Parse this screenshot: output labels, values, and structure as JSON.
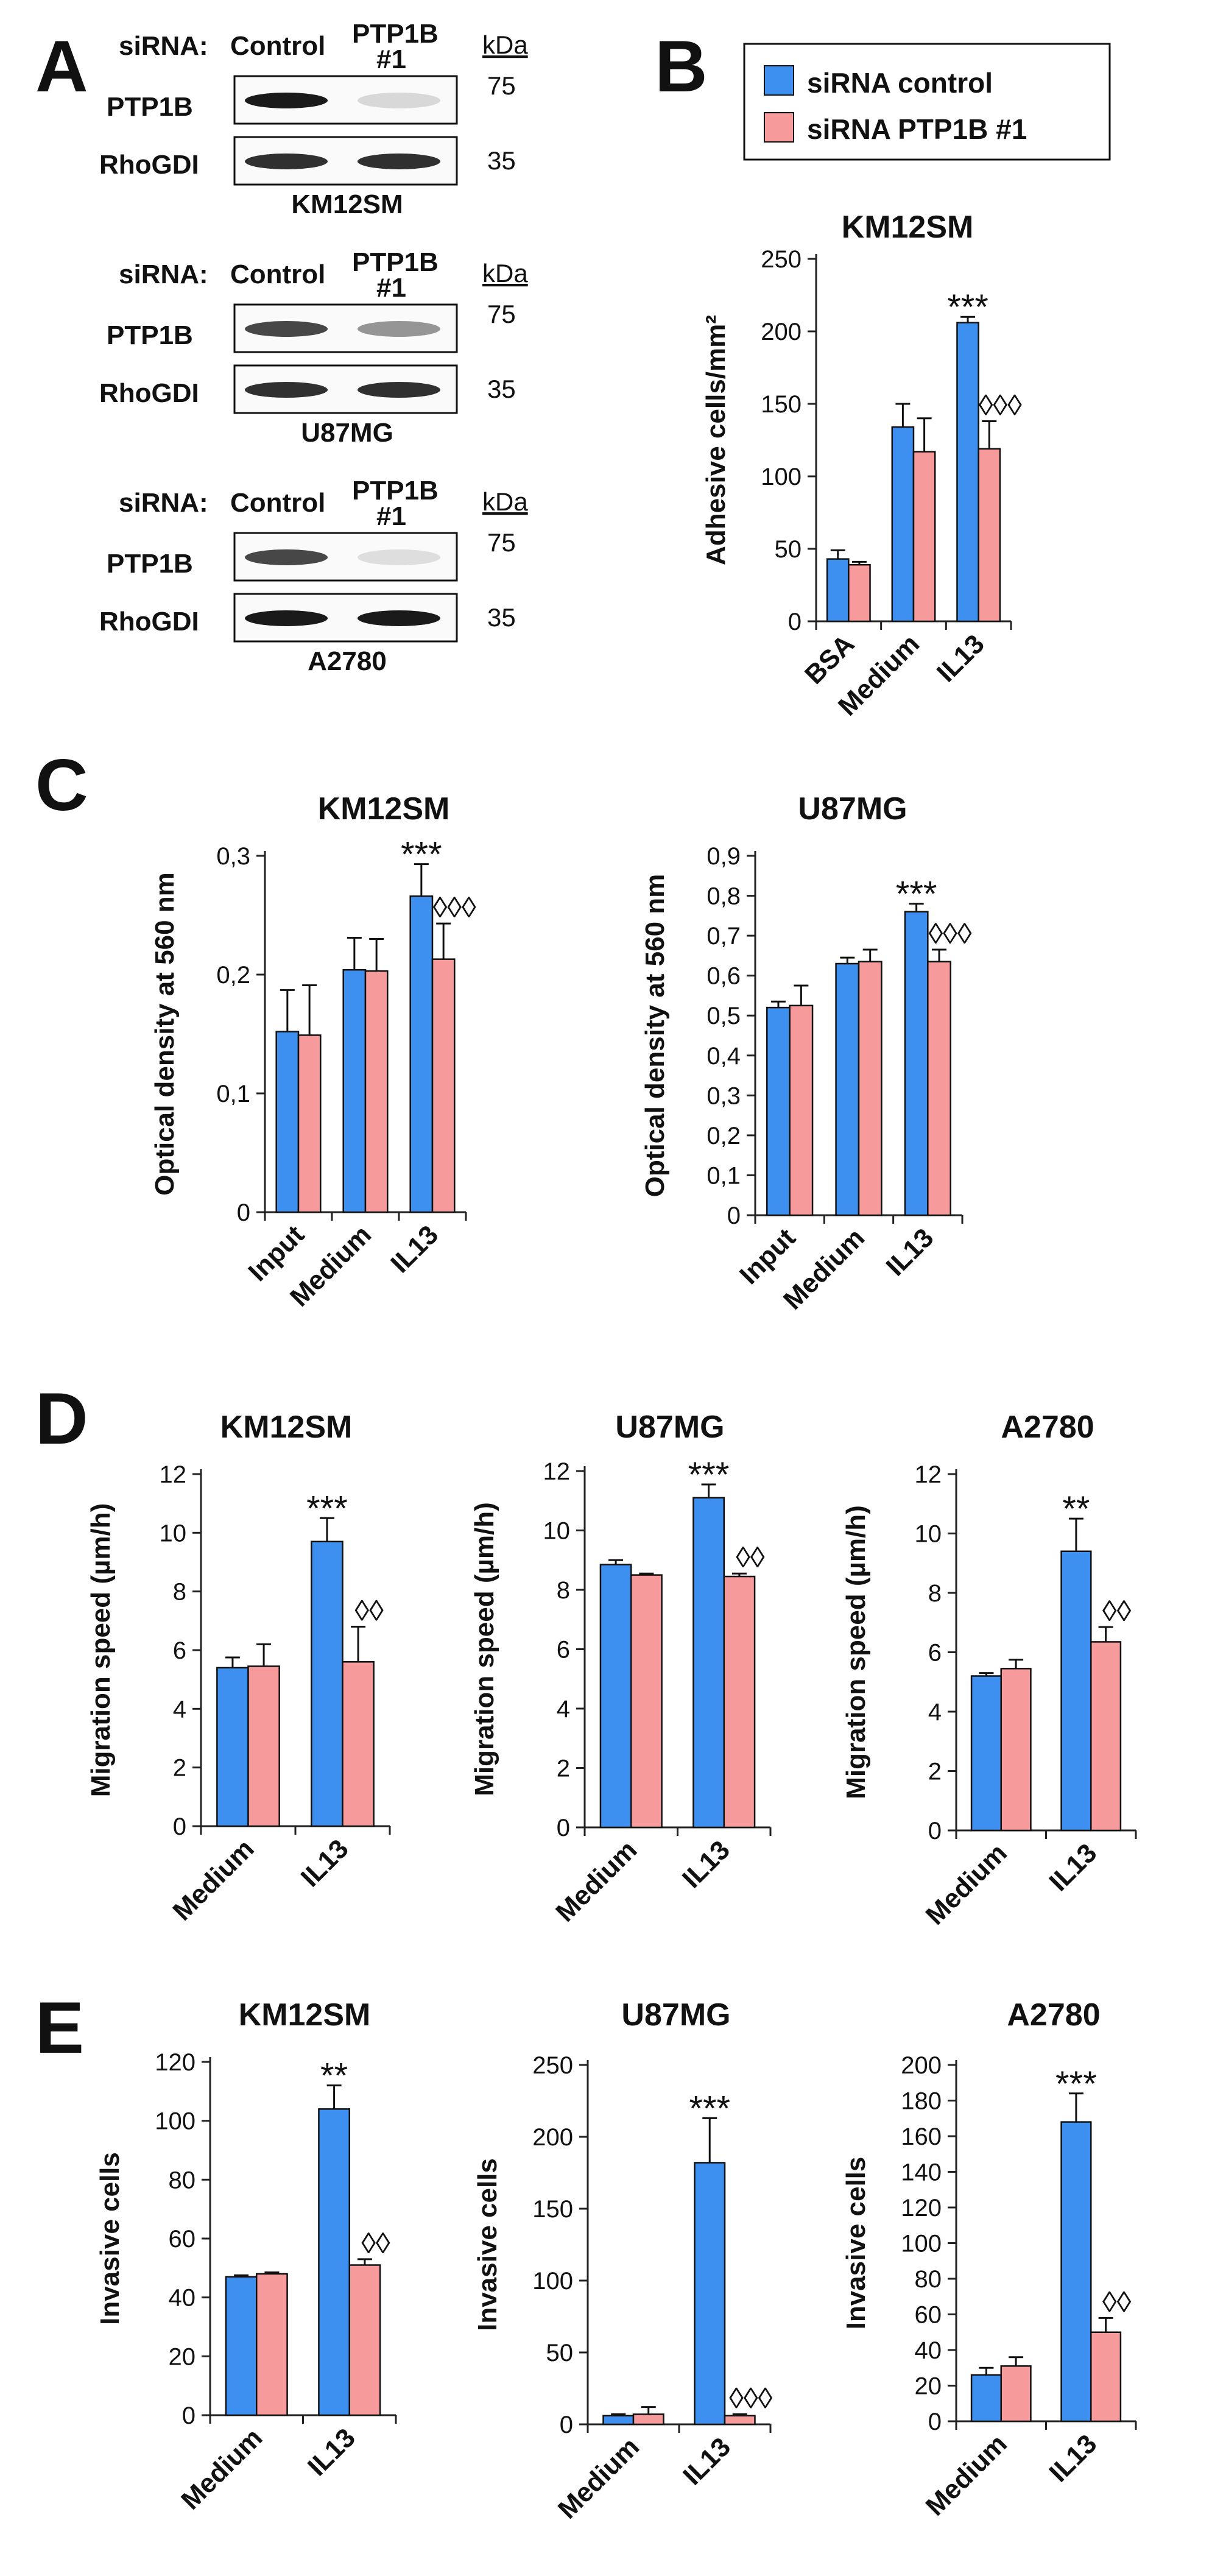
{
  "colors": {
    "control": "#3d8ff0",
    "ptp": "#f79a9c",
    "axis": "#222222",
    "band": "#1a1a1a",
    "box": "#ffffff"
  },
  "legend": {
    "control_label": "siRNA control",
    "ptp_label": "siRNA PTP1B #1"
  },
  "panel_labels": {
    "a": "A",
    "b": "B",
    "c": "C",
    "d": "D",
    "e": "E"
  },
  "blots": [
    {
      "cell": "KM12SM",
      "siRNA": "siRNA:",
      "control": "Control",
      "ptp_line1": "PTP1B",
      "ptp_line2": "#1",
      "kda": "kDa",
      "row1": "PTP1B",
      "row2": "RhoGDI",
      "mw1": "75",
      "mw2": "35",
      "band_intensity": [
        [
          1.0,
          0.15
        ],
        [
          0.9,
          0.9
        ]
      ]
    },
    {
      "cell": "U87MG",
      "siRNA": "siRNA:",
      "control": "Control",
      "ptp_line1": "PTP1B",
      "ptp_line2": "#1",
      "kda": "kDa",
      "row1": "PTP1B",
      "row2": "RhoGDI",
      "mw1": "75",
      "mw2": "35",
      "band_intensity": [
        [
          0.8,
          0.45
        ],
        [
          0.9,
          0.9
        ]
      ]
    },
    {
      "cell": "A2780",
      "siRNA": "siRNA:",
      "control": "Control",
      "ptp_line1": "PTP1B",
      "ptp_line2": "#1",
      "kda": "kDa",
      "row1": "PTP1B",
      "row2": "RhoGDI",
      "mw1": "75",
      "mw2": "35",
      "band_intensity": [
        [
          0.8,
          0.12
        ],
        [
          1.0,
          1.0
        ]
      ]
    }
  ],
  "chart_data": [
    {
      "id": "B_KM12SM",
      "panel": "B",
      "type": "bar",
      "title": "KM12SM",
      "ylabel": "Adhesive cells/mm²",
      "categories": [
        "BSA",
        "Medium",
        "IL13"
      ],
      "ylim": [
        0,
        250
      ],
      "yticks": [
        "0",
        "50",
        "100",
        "150",
        "200",
        "250"
      ],
      "series": [
        {
          "name": "siRNA control",
          "values": [
            43,
            134,
            206
          ],
          "errors": [
            6,
            16,
            4
          ]
        },
        {
          "name": "siRNA PTP1B #1",
          "values": [
            39,
            117,
            119
          ],
          "errors": [
            2,
            23,
            19
          ]
        }
      ],
      "annotations": [
        {
          "category": "IL13",
          "series": 0,
          "text": "***"
        },
        {
          "category": "IL13",
          "series": 1,
          "text": "◊◊◊"
        }
      ]
    },
    {
      "id": "C_KM12SM",
      "panel": "C",
      "type": "bar",
      "title": "KM12SM",
      "ylabel": "Optical density  at 560 nm",
      "categories": [
        "Input",
        "Medium",
        "IL13"
      ],
      "ylim": [
        0,
        0.3
      ],
      "yticks": [
        "0",
        "0,1",
        "0,2",
        "0,3"
      ],
      "series": [
        {
          "name": "siRNA control",
          "values": [
            0.152,
            0.204,
            0.266
          ],
          "errors": [
            0.035,
            0.027,
            0.027
          ]
        },
        {
          "name": "siRNA PTP1B #1",
          "values": [
            0.149,
            0.203,
            0.213
          ],
          "errors": [
            0.042,
            0.027,
            0.03
          ]
        }
      ],
      "annotations": [
        {
          "category": "IL13",
          "series": 0,
          "text": "***"
        },
        {
          "category": "IL13",
          "series": 1,
          "text": "◊◊◊"
        }
      ]
    },
    {
      "id": "C_U87MG",
      "panel": "C",
      "type": "bar",
      "title": "U87MG",
      "ylabel": "Optical density at 560 nm",
      "categories": [
        "Input",
        "Medium",
        "IL13"
      ],
      "ylim": [
        0,
        0.9
      ],
      "yticks": [
        "0",
        "0,1",
        "0,2",
        "0,3",
        "0,4",
        "0,5",
        "0,6",
        "0,7",
        "0,8",
        "0,9"
      ],
      "series": [
        {
          "name": "siRNA control",
          "values": [
            0.52,
            0.63,
            0.76
          ],
          "errors": [
            0.015,
            0.015,
            0.02
          ]
        },
        {
          "name": "siRNA PTP1B #1",
          "values": [
            0.525,
            0.635,
            0.635
          ],
          "errors": [
            0.05,
            0.03,
            0.03
          ]
        }
      ],
      "annotations": [
        {
          "category": "IL13",
          "series": 0,
          "text": "***"
        },
        {
          "category": "IL13",
          "series": 1,
          "text": "◊◊◊"
        }
      ]
    },
    {
      "id": "D_KM12SM",
      "panel": "D",
      "type": "bar",
      "title": "KM12SM",
      "ylabel": "Migration speed (µm/h)",
      "categories": [
        "Medium",
        "IL13"
      ],
      "ylim": [
        0,
        12
      ],
      "yticks": [
        "0",
        "2",
        "4",
        "6",
        "8",
        "10",
        "12"
      ],
      "series": [
        {
          "name": "siRNA control",
          "values": [
            5.4,
            9.7
          ],
          "errors": [
            0.35,
            0.8
          ]
        },
        {
          "name": "siRNA PTP1B #1",
          "values": [
            5.45,
            5.6
          ],
          "errors": [
            0.75,
            1.2
          ]
        }
      ],
      "annotations": [
        {
          "category": "IL13",
          "series": 0,
          "text": "***"
        },
        {
          "category": "IL13",
          "series": 1,
          "text": "◊◊"
        }
      ]
    },
    {
      "id": "D_U87MG",
      "panel": "D",
      "type": "bar",
      "title": "U87MG",
      "ylabel": "Migration speed (µm/h)",
      "categories": [
        "Medium",
        "IL13"
      ],
      "ylim": [
        0,
        12
      ],
      "yticks": [
        "0",
        "2",
        "4",
        "6",
        "8",
        "10",
        "12"
      ],
      "series": [
        {
          "name": "siRNA control",
          "values": [
            8.85,
            11.1
          ],
          "errors": [
            0.15,
            0.45
          ]
        },
        {
          "name": "siRNA PTP1B #1",
          "values": [
            8.5,
            8.45
          ],
          "errors": [
            0.05,
            0.1
          ]
        }
      ],
      "annotations": [
        {
          "category": "IL13",
          "series": 0,
          "text": "***"
        },
        {
          "category": "IL13",
          "series": 1,
          "text": "◊◊"
        }
      ]
    },
    {
      "id": "D_A2780",
      "panel": "D",
      "type": "bar",
      "title": "A2780",
      "ylabel": "Migration speed (µm/h)",
      "categories": [
        "Medium",
        "IL13"
      ],
      "ylim": [
        0,
        12
      ],
      "yticks": [
        "0",
        "2",
        "4",
        "6",
        "8",
        "10",
        "12"
      ],
      "series": [
        {
          "name": "siRNA control",
          "values": [
            5.2,
            9.4
          ],
          "errors": [
            0.1,
            1.1
          ]
        },
        {
          "name": "siRNA PTP1B #1",
          "values": [
            5.45,
            6.35
          ],
          "errors": [
            0.3,
            0.5
          ]
        }
      ],
      "annotations": [
        {
          "category": "IL13",
          "series": 0,
          "text": "**"
        },
        {
          "category": "IL13",
          "series": 1,
          "text": "◊◊"
        }
      ]
    },
    {
      "id": "E_KM12SM",
      "panel": "E",
      "type": "bar",
      "title": "KM12SM",
      "ylabel": "Invasive cells",
      "categories": [
        "Medium",
        "IL13"
      ],
      "ylim": [
        0,
        120
      ],
      "yticks": [
        "0",
        "20",
        "40",
        "60",
        "80",
        "100",
        "120"
      ],
      "series": [
        {
          "name": "siRNA control",
          "values": [
            47,
            104
          ],
          "errors": [
            0.5,
            8
          ]
        },
        {
          "name": "siRNA PTP1B #1",
          "values": [
            48,
            51
          ],
          "errors": [
            0.5,
            2
          ]
        }
      ],
      "annotations": [
        {
          "category": "IL13",
          "series": 0,
          "text": "**"
        },
        {
          "category": "IL13",
          "series": 1,
          "text": "◊◊"
        }
      ]
    },
    {
      "id": "E_U87MG",
      "panel": "E",
      "type": "bar",
      "title": "U87MG",
      "ylabel": "Invasive cells",
      "categories": [
        "Medium",
        "IL13"
      ],
      "ylim": [
        0,
        250
      ],
      "yticks": [
        "0",
        "50",
        "100",
        "150",
        "200",
        "250"
      ],
      "series": [
        {
          "name": "siRNA control",
          "values": [
            6,
            182
          ],
          "errors": [
            1,
            31
          ]
        },
        {
          "name": "siRNA PTP1B #1",
          "values": [
            7,
            6
          ],
          "errors": [
            5,
            1
          ]
        }
      ],
      "annotations": [
        {
          "category": "IL13",
          "series": 0,
          "text": "***"
        },
        {
          "category": "IL13",
          "series": 1,
          "text": "◊◊◊"
        }
      ]
    },
    {
      "id": "E_A2780",
      "panel": "E",
      "type": "bar",
      "title": "A2780",
      "ylabel": "Invasive cells",
      "categories": [
        "Medium",
        "IL13"
      ],
      "ylim": [
        0,
        200
      ],
      "yticks": [
        "0",
        "20",
        "40",
        "60",
        "80",
        "100",
        "120",
        "140",
        "160",
        "180",
        "200"
      ],
      "series": [
        {
          "name": "siRNA control",
          "values": [
            26,
            168
          ],
          "errors": [
            4,
            16
          ]
        },
        {
          "name": "siRNA PTP1B #1",
          "values": [
            31,
            50
          ],
          "errors": [
            5,
            8
          ]
        }
      ],
      "annotations": [
        {
          "category": "IL13",
          "series": 0,
          "text": "***"
        },
        {
          "category": "IL13",
          "series": 1,
          "text": "◊◊"
        }
      ]
    }
  ]
}
